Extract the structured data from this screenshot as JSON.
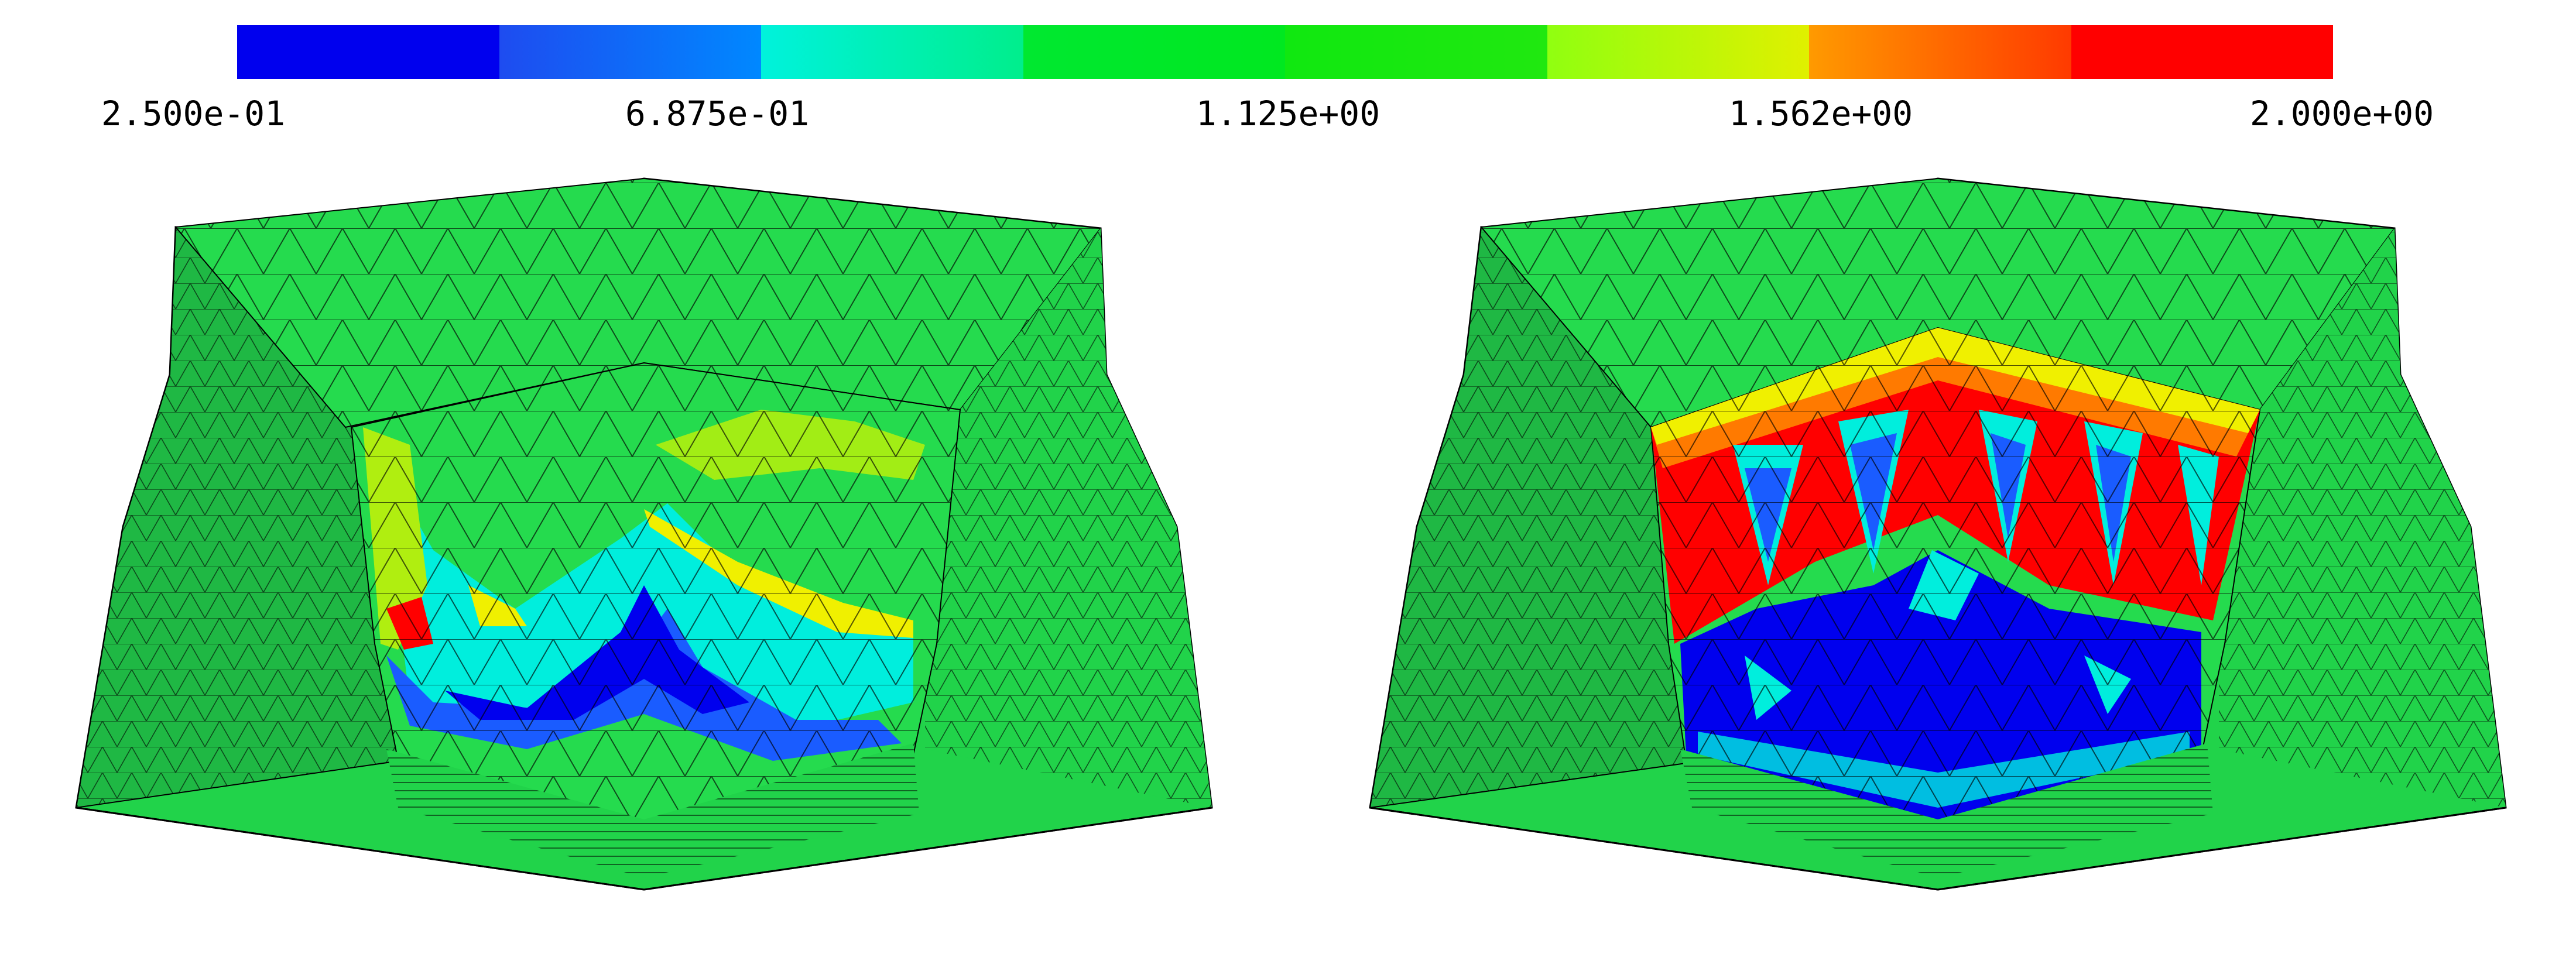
{
  "legend": {
    "colors": [
      "#0000ee",
      "#1a5cff",
      "#00eedd",
      "#00e832",
      "#10e810",
      "#b0ee10",
      "#ff7a00",
      "#ff0000"
    ],
    "gradients": [
      [
        "#0000ee",
        "#0000ee"
      ],
      [
        "#1e4cf0",
        "#0088ff"
      ],
      [
        "#00f2dc",
        "#00ee8c"
      ],
      [
        "#00e830",
        "#00e820"
      ],
      [
        "#10e810",
        "#20e810"
      ],
      [
        "#90ff10",
        "#e0f000"
      ],
      [
        "#ff9a00",
        "#ff3a00"
      ],
      [
        "#ff0000",
        "#ff0000"
      ]
    ],
    "tick_labels": [
      "2.500e-01",
      "6.875e-01",
      "1.125e+00",
      "1.562e+00",
      "2.000e+00"
    ]
  },
  "views": [
    {
      "name": "left-mesh",
      "base_color": "#21d34a",
      "face_color": "#25db4e"
    },
    {
      "name": "right-mesh",
      "base_color": "#21d34a",
      "face_color": "#25db4e"
    }
  ]
}
